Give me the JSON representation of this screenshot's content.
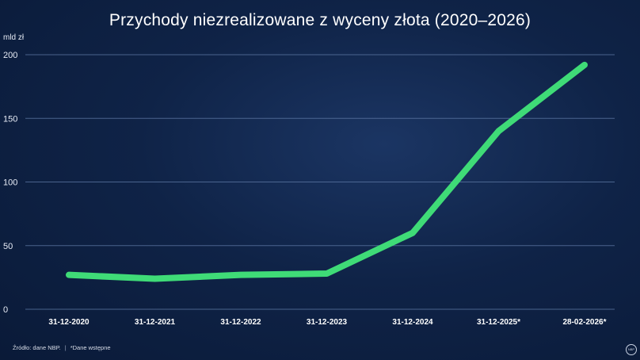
{
  "title": "Przychody niezrealizowane z wyceny złota (2020–2026)",
  "unit_label": "mld zł",
  "footer": {
    "source": "Źródło: dane NBP.",
    "separator": "|",
    "note": "*Dane wstępne"
  },
  "logo_text": "NBP",
  "colors": {
    "background": "#0f2347",
    "line": "#3fdb77",
    "grid": "#5f79a6",
    "text": "#ffffff"
  },
  "chart_data": {
    "type": "line",
    "title": "Przychody niezrealizowane z wyceny złota (2020–2026)",
    "ylabel": "mld zł",
    "xlabel": "",
    "categories": [
      "31-12-2020",
      "31-12-2021",
      "31-12-2022",
      "31-12-2023",
      "31-12-2024",
      "31-12-2025*",
      "28-02-2026*"
    ],
    "series": [
      {
        "values": [
          27,
          24,
          27,
          28,
          60,
          140,
          192
        ]
      }
    ],
    "ylim": [
      0,
      200
    ],
    "yticks": [
      0,
      50,
      100,
      150,
      200
    ],
    "grid": true,
    "legend": "none"
  }
}
